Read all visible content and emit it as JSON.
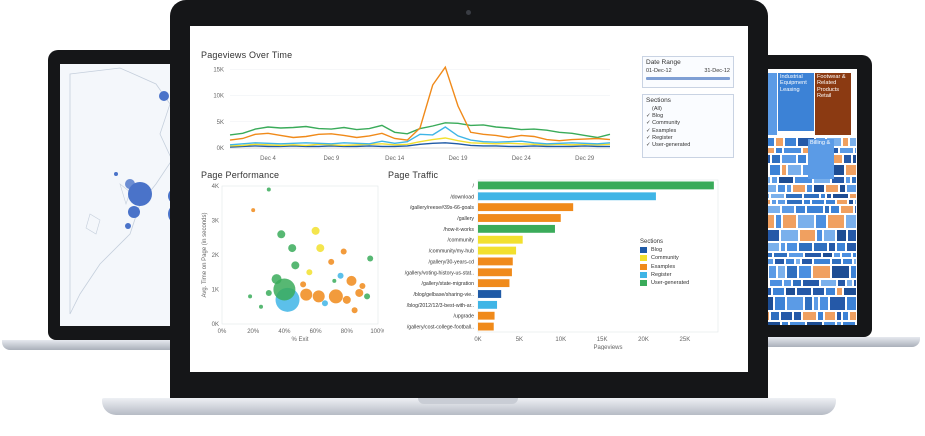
{
  "colors": {
    "blog": "#1f5aa6",
    "community": "#f2e02e",
    "examples": "#f08a1a",
    "register": "#3fb5e6",
    "user_generated": "#3aab5a",
    "treemap_brown": "#8b3a12",
    "treemap_blue": "#3c82d6"
  },
  "pageviews_over_time": {
    "title": "Pageviews Over Time",
    "y_ticks": [
      "15K",
      "10K",
      "5K",
      "0K"
    ],
    "x_ticks": [
      "Dec 4",
      "Dec 9",
      "Dec 14",
      "Dec 19",
      "Dec 24",
      "Dec 29"
    ]
  },
  "date_range": {
    "title": "Date Range",
    "start": "01-Dec-12",
    "end": "31-Dec-12"
  },
  "sections_filter": {
    "title": "Sections",
    "items": [
      "(All)",
      "Blog",
      "Community",
      "Examples",
      "Register",
      "User-generated"
    ]
  },
  "page_performance": {
    "title": "Page Performance",
    "y_label": "Avg. Time on Page (in seconds)",
    "y_ticks": [
      "4K",
      "3K",
      "2K",
      "1K",
      "0K"
    ],
    "x_label": "% Exit",
    "x_ticks": [
      "0%",
      "20%",
      "40%",
      "60%",
      "80%",
      "100%"
    ]
  },
  "page_traffic": {
    "title": "Page Traffic",
    "x_label": "Pageviews",
    "x_ticks": [
      "0K",
      "5K",
      "10K",
      "15K",
      "20K",
      "25K"
    ],
    "pages": [
      "/",
      "/download",
      "/gallery/reese#39s-66-goals",
      "/gallery",
      "/how-it-works",
      "/community",
      "/community/my-hub",
      "/gallery/30-years-cd",
      "/gallery/voting-history-us-stat..",
      "/gallery/state-migration",
      "/blog/gelbase/sharing-vie..",
      "/blog/2012/12/3-best-with-ar..",
      "/upgrade",
      "/gallery/cost-college-football.."
    ],
    "legend_title": "Sections",
    "legend": [
      "Blog",
      "Community",
      "Examples",
      "Register",
      "User-generated"
    ]
  },
  "treemap": {
    "labels": [
      "Industrial Equipment Leasing",
      "Footwear & Related Products Retail",
      "Billing &"
    ]
  },
  "chart_data": [
    {
      "type": "line",
      "title": "Pageviews Over Time",
      "x": [
        "Dec 1",
        "Dec 2",
        "Dec 3",
        "Dec 4",
        "Dec 5",
        "Dec 6",
        "Dec 7",
        "Dec 8",
        "Dec 9",
        "Dec 10",
        "Dec 11",
        "Dec 12",
        "Dec 13",
        "Dec 14",
        "Dec 15",
        "Dec 16",
        "Dec 17",
        "Dec 18",
        "Dec 19",
        "Dec 20",
        "Dec 21",
        "Dec 22",
        "Dec 23",
        "Dec 24",
        "Dec 25",
        "Dec 26",
        "Dec 27",
        "Dec 28",
        "Dec 29",
        "Dec 30",
        "Dec 31"
      ],
      "ylim": [
        0,
        16000
      ],
      "series": [
        {
          "name": "Examples",
          "values": [
            1500,
            1800,
            2600,
            2800,
            2400,
            2000,
            2200,
            2600,
            2700,
            2400,
            2000,
            2300,
            2800,
            1800,
            1500,
            3800,
            12000,
            15400,
            8000,
            3000,
            2600,
            2400,
            2000,
            2400,
            2200,
            1600,
            1400,
            1600,
            1700,
            1800,
            1600
          ]
        },
        {
          "name": "User-generated",
          "values": [
            2500,
            2800,
            3600,
            4000,
            3800,
            3900,
            4100,
            3700,
            3600,
            3900,
            3500,
            3700,
            4300,
            3000,
            2700,
            3700,
            4200,
            4800,
            4700,
            4300,
            4400,
            4000,
            3800,
            3500,
            3600,
            3400,
            3000,
            2800,
            2400,
            2000,
            2600
          ]
        },
        {
          "name": "Register",
          "values": [
            600,
            800,
            1000,
            900,
            800,
            900,
            1000,
            900,
            800,
            1000,
            900,
            800,
            1300,
            900,
            1200,
            2600,
            2500,
            4000,
            2300,
            1500,
            1200,
            1100,
            1200,
            1300,
            1000,
            800,
            900,
            1000,
            900,
            800,
            1000
          ]
        },
        {
          "name": "Community",
          "values": [
            400,
            500,
            700,
            600,
            500,
            600,
            500,
            700,
            600,
            500,
            600,
            700,
            800,
            600,
            700,
            1200,
            1600,
            1900,
            1400,
            1000,
            900,
            800,
            900,
            800,
            700,
            600,
            700,
            600,
            700,
            600,
            700
          ]
        },
        {
          "name": "Blog",
          "values": [
            200,
            300,
            400,
            300,
            300,
            400,
            300,
            300,
            400,
            300,
            300,
            400,
            300,
            300,
            400,
            700,
            900,
            1000,
            800,
            500,
            400,
            400,
            300,
            300,
            400,
            300,
            300,
            300,
            400,
            300,
            300
          ]
        }
      ]
    },
    {
      "type": "bar",
      "title": "Page Traffic",
      "categories": [
        "/",
        "/download",
        "/gallery/reese#39s-66-goals",
        "/gallery",
        "/how-it-works",
        "/community",
        "/community/my-hub",
        "/gallery/30-years-cd",
        "/gallery/voting-history-us-stat..",
        "/gallery/state-migration",
        "/blog/gelbase/sharing-vie..",
        "/blog/2012/12/3-best-with-ar..",
        "/upgrade",
        "/gallery/cost-college-football.."
      ],
      "values": [
        28500,
        21500,
        11500,
        10000,
        9300,
        5400,
        4600,
        4200,
        4100,
        3800,
        2800,
        2300,
        2000,
        1900
      ],
      "sections": [
        "User-generated",
        "Register",
        "Examples",
        "Examples",
        "User-generated",
        "Community",
        "Community",
        "Examples",
        "Examples",
        "Examples",
        "Blog",
        "Register",
        "Examples",
        "Examples"
      ],
      "xlabel": "Pageviews",
      "xlim": [
        0,
        29000
      ]
    },
    {
      "type": "scatter",
      "title": "Page Performance",
      "xlabel": "% Exit",
      "ylabel": "Avg. Time on Page (in seconds)",
      "xlim": [
        0,
        100
      ],
      "ylim": [
        0,
        4000
      ],
      "points": [
        {
          "x": 42,
          "y": 700,
          "r": 12,
          "section": "Register"
        },
        {
          "x": 40,
          "y": 1000,
          "r": 11,
          "section": "User-generated"
        },
        {
          "x": 62,
          "y": 800,
          "r": 6,
          "section": "Examples"
        },
        {
          "x": 54,
          "y": 850,
          "r": 6,
          "section": "Examples"
        },
        {
          "x": 73,
          "y": 800,
          "r": 7,
          "section": "Examples"
        },
        {
          "x": 83,
          "y": 1250,
          "r": 5,
          "section": "Examples"
        },
        {
          "x": 88,
          "y": 900,
          "r": 4,
          "section": "Examples"
        },
        {
          "x": 80,
          "y": 700,
          "r": 4,
          "section": "Examples"
        },
        {
          "x": 35,
          "y": 1300,
          "r": 5,
          "section": "User-generated"
        },
        {
          "x": 47,
          "y": 1700,
          "r": 4,
          "section": "User-generated"
        },
        {
          "x": 45,
          "y": 2200,
          "r": 4,
          "section": "User-generated"
        },
        {
          "x": 38,
          "y": 2600,
          "r": 4,
          "section": "User-generated"
        },
        {
          "x": 60,
          "y": 2700,
          "r": 4,
          "section": "Community"
        },
        {
          "x": 63,
          "y": 2200,
          "r": 4,
          "section": "Community"
        },
        {
          "x": 56,
          "y": 1500,
          "r": 3,
          "section": "Community"
        },
        {
          "x": 70,
          "y": 1800,
          "r": 3,
          "section": "Examples"
        },
        {
          "x": 90,
          "y": 1100,
          "r": 3,
          "section": "Examples"
        },
        {
          "x": 93,
          "y": 800,
          "r": 3,
          "section": "User-generated"
        },
        {
          "x": 30,
          "y": 900,
          "r": 3,
          "section": "User-generated"
        },
        {
          "x": 25,
          "y": 500,
          "r": 2,
          "section": "User-generated"
        },
        {
          "x": 66,
          "y": 600,
          "r": 3,
          "section": "Register"
        },
        {
          "x": 76,
          "y": 1400,
          "r": 3,
          "section": "Register"
        },
        {
          "x": 95,
          "y": 1900,
          "r": 3,
          "section": "User-generated"
        },
        {
          "x": 85,
          "y": 400,
          "r": 3,
          "section": "Examples"
        },
        {
          "x": 52,
          "y": 1150,
          "r": 3,
          "section": "Examples"
        },
        {
          "x": 72,
          "y": 1250,
          "r": 2,
          "section": "User-generated"
        },
        {
          "x": 20,
          "y": 3300,
          "r": 2,
          "section": "Examples"
        },
        {
          "x": 30,
          "y": 3900,
          "r": 2,
          "section": "User-generated"
        },
        {
          "x": 78,
          "y": 2100,
          "r": 3,
          "section": "Examples"
        },
        {
          "x": 18,
          "y": 800,
          "r": 2,
          "section": "User-generated"
        }
      ]
    }
  ]
}
